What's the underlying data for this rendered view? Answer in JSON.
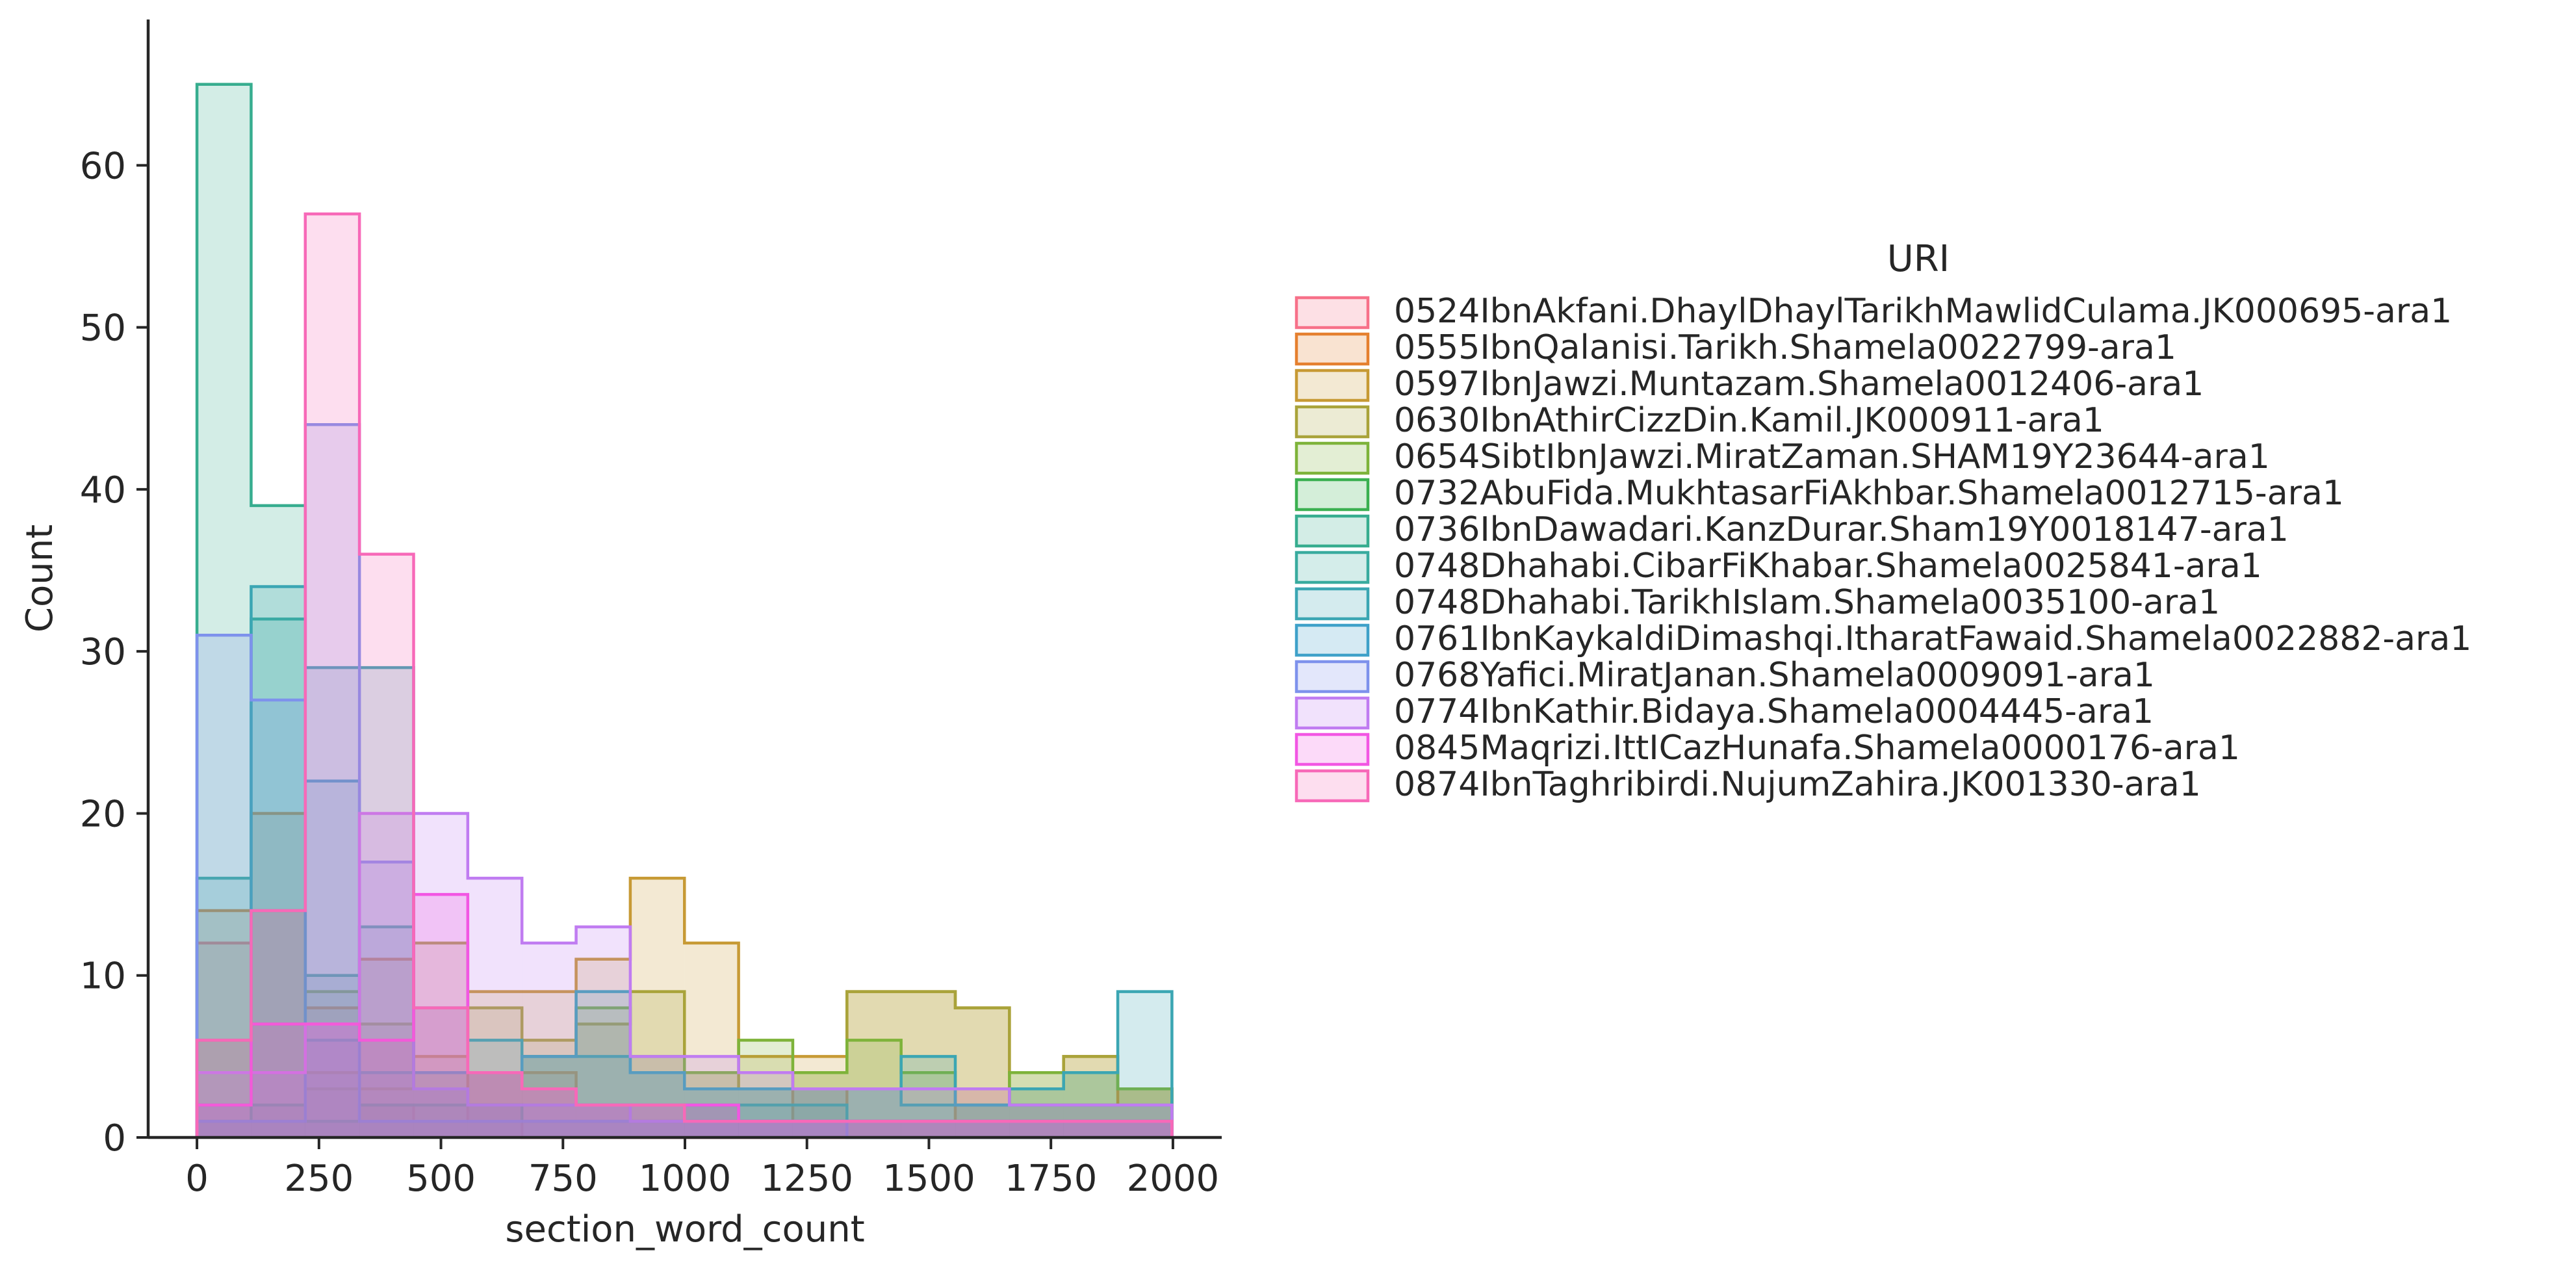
{
  "chart_data": {
    "type": "histogram",
    "style": "step-filled-overlay",
    "xlabel": "section_word_count",
    "ylabel": "Count",
    "xlim": [
      -100,
      2100
    ],
    "ylim": [
      0,
      69
    ],
    "x_ticks": [
      0,
      250,
      500,
      750,
      1000,
      1250,
      1500,
      1750,
      2000
    ],
    "y_ticks": [
      0,
      10,
      20,
      30,
      40,
      50,
      60
    ],
    "bin_edges": [
      0,
      111,
      222,
      333,
      444,
      555,
      666,
      777,
      888,
      999,
      1110,
      1221,
      1332,
      1443,
      1554,
      1665,
      1776,
      1887,
      1998
    ],
    "legend": {
      "title": "URI",
      "position": "right"
    },
    "series": [
      {
        "name": "0524IbnAkfani.DhaylDhaylTarikhMawlidCulama.JK000695-ara1",
        "color": "#f77189",
        "counts": [
          12,
          2,
          1,
          2,
          1,
          2,
          0,
          0,
          0,
          0,
          0,
          0,
          0,
          0,
          0,
          0,
          0,
          0
        ]
      },
      {
        "name": "0555IbnQalanisi.Tarikh.Shamela0022799-ara1",
        "color": "#e5802f",
        "counts": [
          14,
          20,
          8,
          11,
          3,
          4,
          4,
          2,
          1,
          2,
          1,
          3,
          1,
          1,
          3,
          2,
          2,
          3
        ]
      },
      {
        "name": "0597IbnJawzi.Muntazam.Shamela0012406-ara1",
        "color": "#c79a35",
        "counts": [
          1,
          1,
          4,
          3,
          5,
          9,
          9,
          11,
          16,
          12,
          5,
          5,
          9,
          9,
          8,
          3,
          5,
          3
        ]
      },
      {
        "name": "0630IbnAthirCizzDin.Kamil.JK000911-ara1",
        "color": "#a9a33a",
        "counts": [
          6,
          14,
          3,
          7,
          12,
          8,
          6,
          7,
          9,
          4,
          3,
          4,
          9,
          9,
          8,
          4,
          5,
          3
        ]
      },
      {
        "name": "0654SibtIbnJawzi.MiratZaman.SHAM19Y23644-ara1",
        "color": "#7eb33a",
        "counts": [
          2,
          7,
          9,
          6,
          4,
          4,
          5,
          8,
          5,
          4,
          6,
          4,
          6,
          4,
          2,
          4,
          4,
          3
        ]
      },
      {
        "name": "0732AbuFida.MukhtasarFiAkhbar.Shamela0012715-ara1",
        "color": "#3bb051",
        "counts": [
          1,
          2,
          1,
          2,
          2,
          2,
          1,
          1,
          1,
          1,
          1,
          1,
          1,
          1,
          1,
          1,
          1,
          1
        ]
      },
      {
        "name": "0736IbnDawadari.KanzDurar.Sham19Y0018147-ara1",
        "color": "#37ad8f",
        "counts": [
          65,
          39,
          6,
          4,
          3,
          2,
          2,
          2,
          2,
          2,
          2,
          2,
          1,
          1,
          1,
          1,
          1,
          1
        ]
      },
      {
        "name": "0748Dhahabi.CibarFiKhabar.Shamela0025841-ara1",
        "color": "#39ab9f",
        "counts": [
          16,
          32,
          10,
          13,
          8,
          6,
          5,
          5,
          4,
          3,
          3,
          3,
          3,
          2,
          2,
          2,
          2,
          2
        ]
      },
      {
        "name": "0748Dhahabi.TarikhIslam.Shamela0035100-ara1",
        "color": "#3ba6b3",
        "counts": [
          2,
          34,
          29,
          29,
          4,
          4,
          5,
          9,
          4,
          3,
          3,
          3,
          3,
          5,
          2,
          3,
          4,
          9
        ]
      },
      {
        "name": "0761IbnKaykaldiDimashqi.ItharatFawaid.Shamela0022882-ara1",
        "color": "#3fa1c9",
        "counts": [
          1,
          1,
          22,
          1,
          1,
          1,
          1,
          1,
          1,
          1,
          1,
          1,
          0,
          0,
          0,
          0,
          0,
          0
        ]
      },
      {
        "name": "0768Yafici.MiratJanan.Shamela0009091-ara1",
        "color": "#7e92ec",
        "counts": [
          31,
          27,
          44,
          17,
          3,
          2,
          2,
          2,
          1,
          1,
          1,
          1,
          1,
          1,
          1,
          1,
          1,
          1
        ]
      },
      {
        "name": "0774IbnKathir.Bidaya.Shamela0004445-ara1",
        "color": "#c07cf1",
        "counts": [
          4,
          4,
          7,
          20,
          20,
          16,
          12,
          13,
          5,
          5,
          4,
          3,
          3,
          3,
          3,
          2,
          2,
          2
        ]
      },
      {
        "name": "0845Maqrizi.IttICazHunafa.Shamela0000176-ara1",
        "color": "#f256e3",
        "counts": [
          2,
          7,
          7,
          6,
          15,
          4,
          3,
          2,
          2,
          2,
          1,
          1,
          1,
          1,
          1,
          1,
          1,
          1
        ]
      },
      {
        "name": "0874IbnTaghribirdi.NujumZahira.JK001330-ara1",
        "color": "#f769b8",
        "counts": [
          6,
          14,
          57,
          36,
          8,
          4,
          3,
          2,
          2,
          1,
          1,
          1,
          1,
          1,
          1,
          1,
          1,
          1
        ]
      }
    ]
  }
}
